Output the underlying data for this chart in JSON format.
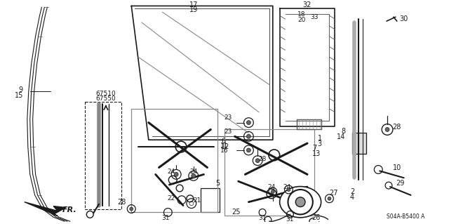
{
  "bg_color": "#ffffff",
  "line_color": "#1a1a1a",
  "fig_width": 6.4,
  "fig_height": 3.19,
  "diagram_code": "S04A-B5400 A"
}
